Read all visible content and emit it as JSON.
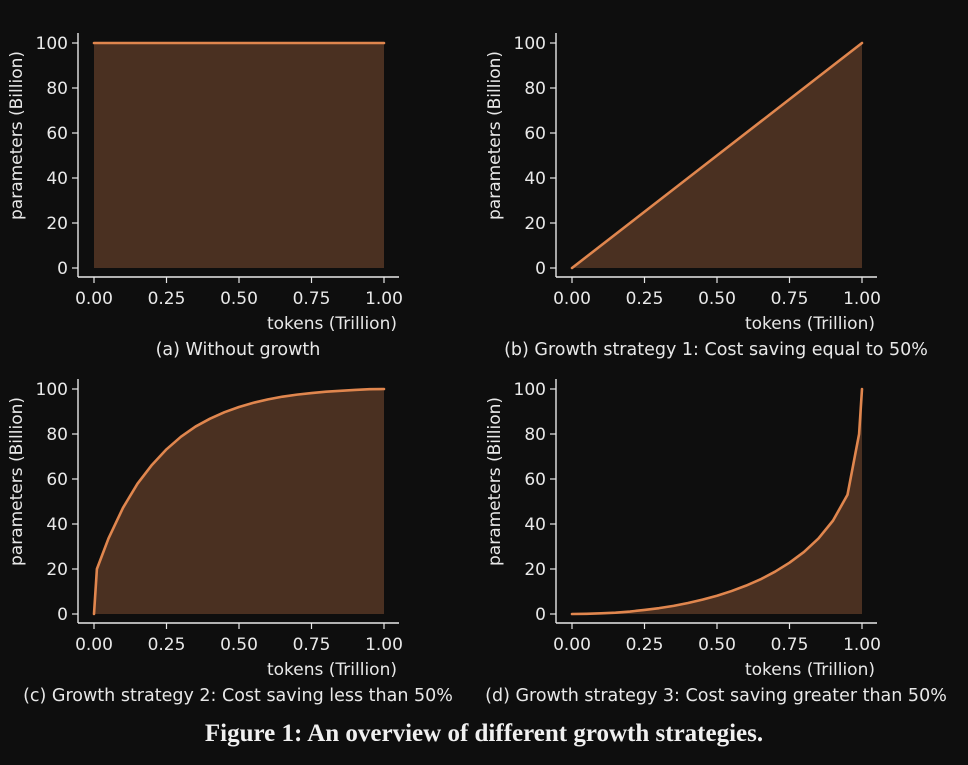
{
  "figure": {
    "caption": "Figure 1:  An overview of different growth strategies."
  },
  "colors": {
    "background": "#0e0e0e",
    "line": "#e0864e",
    "fill": "#4a3021",
    "axis": "#e8e8e8",
    "text": "#e8e8e8"
  },
  "chart_data": [
    {
      "type": "area",
      "subcaption": "(a) Without growth",
      "xlabel": "tokens (Trillion)",
      "ylabel": "parameters (Billion)",
      "xlim": [
        0,
        1
      ],
      "ylim": [
        0,
        100
      ],
      "xticks": [
        "0.00",
        "0.25",
        "0.50",
        "0.75",
        "1.00"
      ],
      "yticks": [
        "0",
        "20",
        "40",
        "60",
        "80",
        "100"
      ],
      "grid": false,
      "x": [
        0,
        0.25,
        0.5,
        0.75,
        1.0
      ],
      "y": [
        100,
        100,
        100,
        100,
        100
      ]
    },
    {
      "type": "area",
      "subcaption": "(b) Growth strategy 1: Cost saving equal to 50%",
      "xlabel": "tokens (Trillion)",
      "ylabel": "parameters (Billion)",
      "xlim": [
        0,
        1
      ],
      "ylim": [
        0,
        100
      ],
      "xticks": [
        "0.00",
        "0.25",
        "0.50",
        "0.75",
        "1.00"
      ],
      "yticks": [
        "0",
        "20",
        "40",
        "60",
        "80",
        "100"
      ],
      "grid": false,
      "x": [
        0,
        0.25,
        0.5,
        0.75,
        1.0
      ],
      "y": [
        0,
        25,
        50,
        75,
        100
      ]
    },
    {
      "type": "area",
      "subcaption": "(c) Growth strategy 2: Cost saving less than 50%",
      "xlabel": "tokens (Trillion)",
      "ylabel": "parameters (Billion)",
      "xlim": [
        0,
        1
      ],
      "ylim": [
        0,
        100
      ],
      "xticks": [
        "0.00",
        "0.25",
        "0.50",
        "0.75",
        "1.00"
      ],
      "yticks": [
        "0",
        "20",
        "40",
        "60",
        "80",
        "100"
      ],
      "grid": false,
      "x": [
        0,
        0.01,
        0.05,
        0.1,
        0.15,
        0.2,
        0.25,
        0.3,
        0.35,
        0.4,
        0.45,
        0.5,
        0.55,
        0.6,
        0.65,
        0.7,
        0.75,
        0.8,
        0.85,
        0.9,
        0.95,
        1.0
      ],
      "y": [
        0,
        20,
        33.6,
        47.2,
        57.9,
        66.3,
        73.2,
        78.8,
        83.3,
        86.8,
        89.7,
        92.0,
        93.9,
        95.4,
        96.6,
        97.5,
        98.2,
        98.8,
        99.2,
        99.6,
        99.9,
        100
      ]
    },
    {
      "type": "area",
      "subcaption": "(d) Growth strategy 3: Cost saving greater than 50%",
      "xlabel": "tokens (Trillion)",
      "ylabel": "parameters (Billion)",
      "xlim": [
        0,
        1
      ],
      "ylim": [
        0,
        100
      ],
      "xticks": [
        "0.00",
        "0.25",
        "0.50",
        "0.75",
        "1.00"
      ],
      "yticks": [
        "0",
        "20",
        "40",
        "60",
        "80",
        "100"
      ],
      "grid": false,
      "x": [
        0,
        0.05,
        0.1,
        0.15,
        0.2,
        0.25,
        0.3,
        0.35,
        0.4,
        0.45,
        0.5,
        0.55,
        0.6,
        0.65,
        0.7,
        0.75,
        0.8,
        0.85,
        0.9,
        0.95,
        0.99,
        1.0
      ],
      "y": [
        0,
        0.1,
        0.3,
        0.6,
        1.1,
        1.8,
        2.6,
        3.6,
        4.9,
        6.4,
        8.1,
        10.2,
        12.6,
        15.4,
        18.8,
        22.8,
        27.6,
        33.6,
        41.5,
        53.0,
        80,
        100
      ]
    }
  ]
}
